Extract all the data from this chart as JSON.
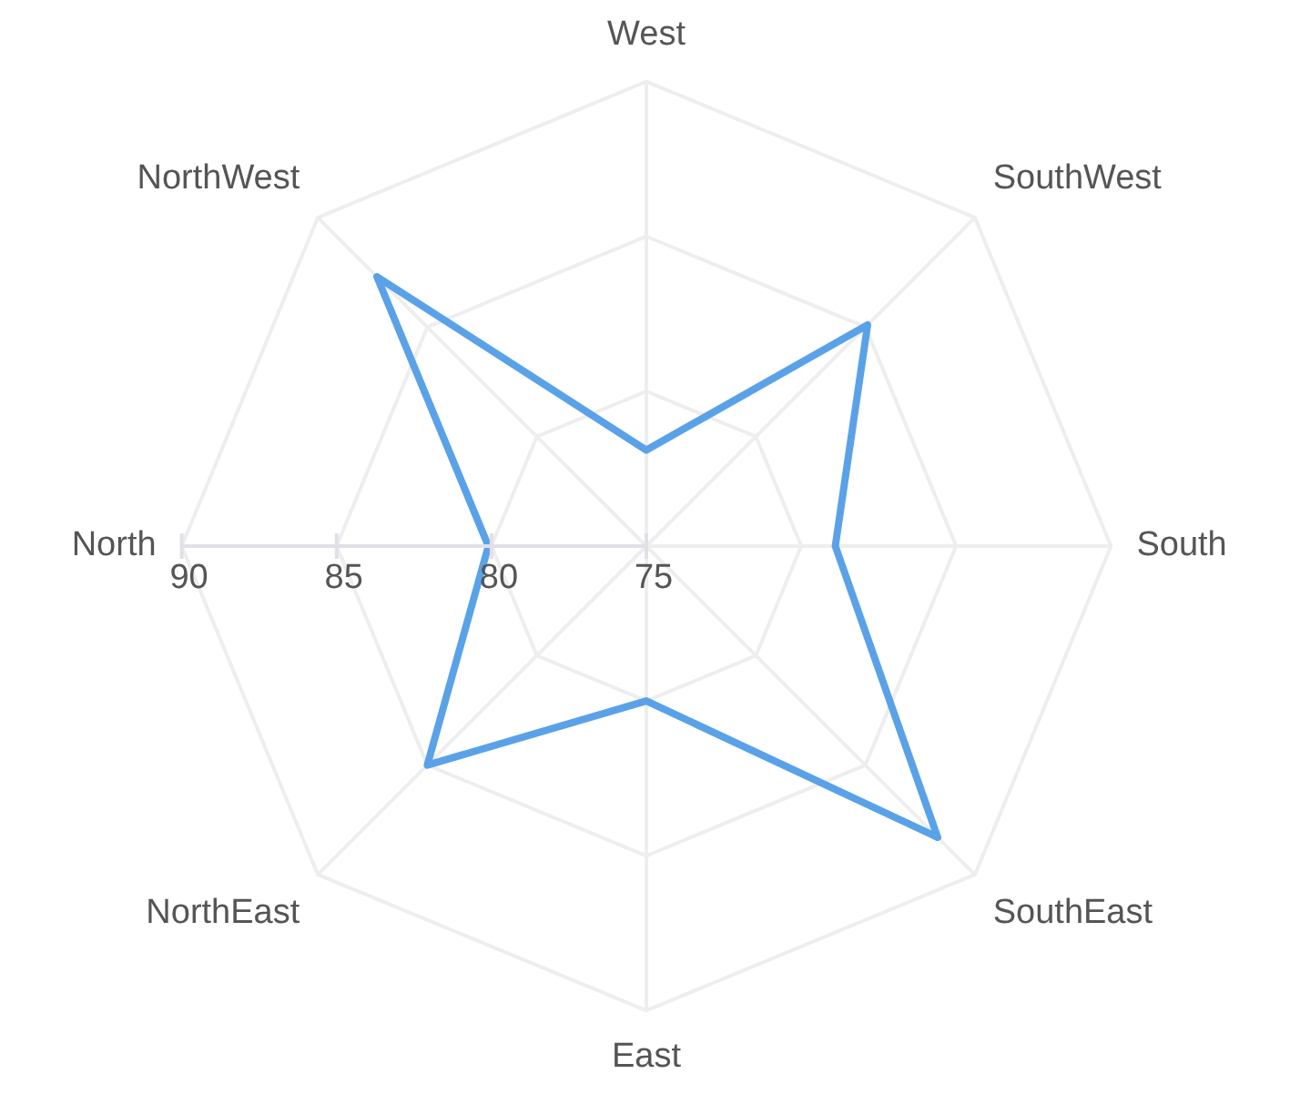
{
  "chart_data": {
    "type": "radar",
    "categories": [
      "West",
      "SouthWest",
      "South",
      "SouthEast",
      "East",
      "NorthEast",
      "North",
      "NorthWest"
    ],
    "series": [
      {
        "color": "#5aa2e8",
        "values": [
          78.1,
          85.1,
          81.1,
          88.3,
          80,
          85,
          80.1,
          87.3
        ]
      }
    ],
    "ylim": [
      75,
      90
    ],
    "yticks": [
      75,
      80,
      85,
      90
    ],
    "grid": true,
    "legend": false,
    "marker": "none"
  }
}
